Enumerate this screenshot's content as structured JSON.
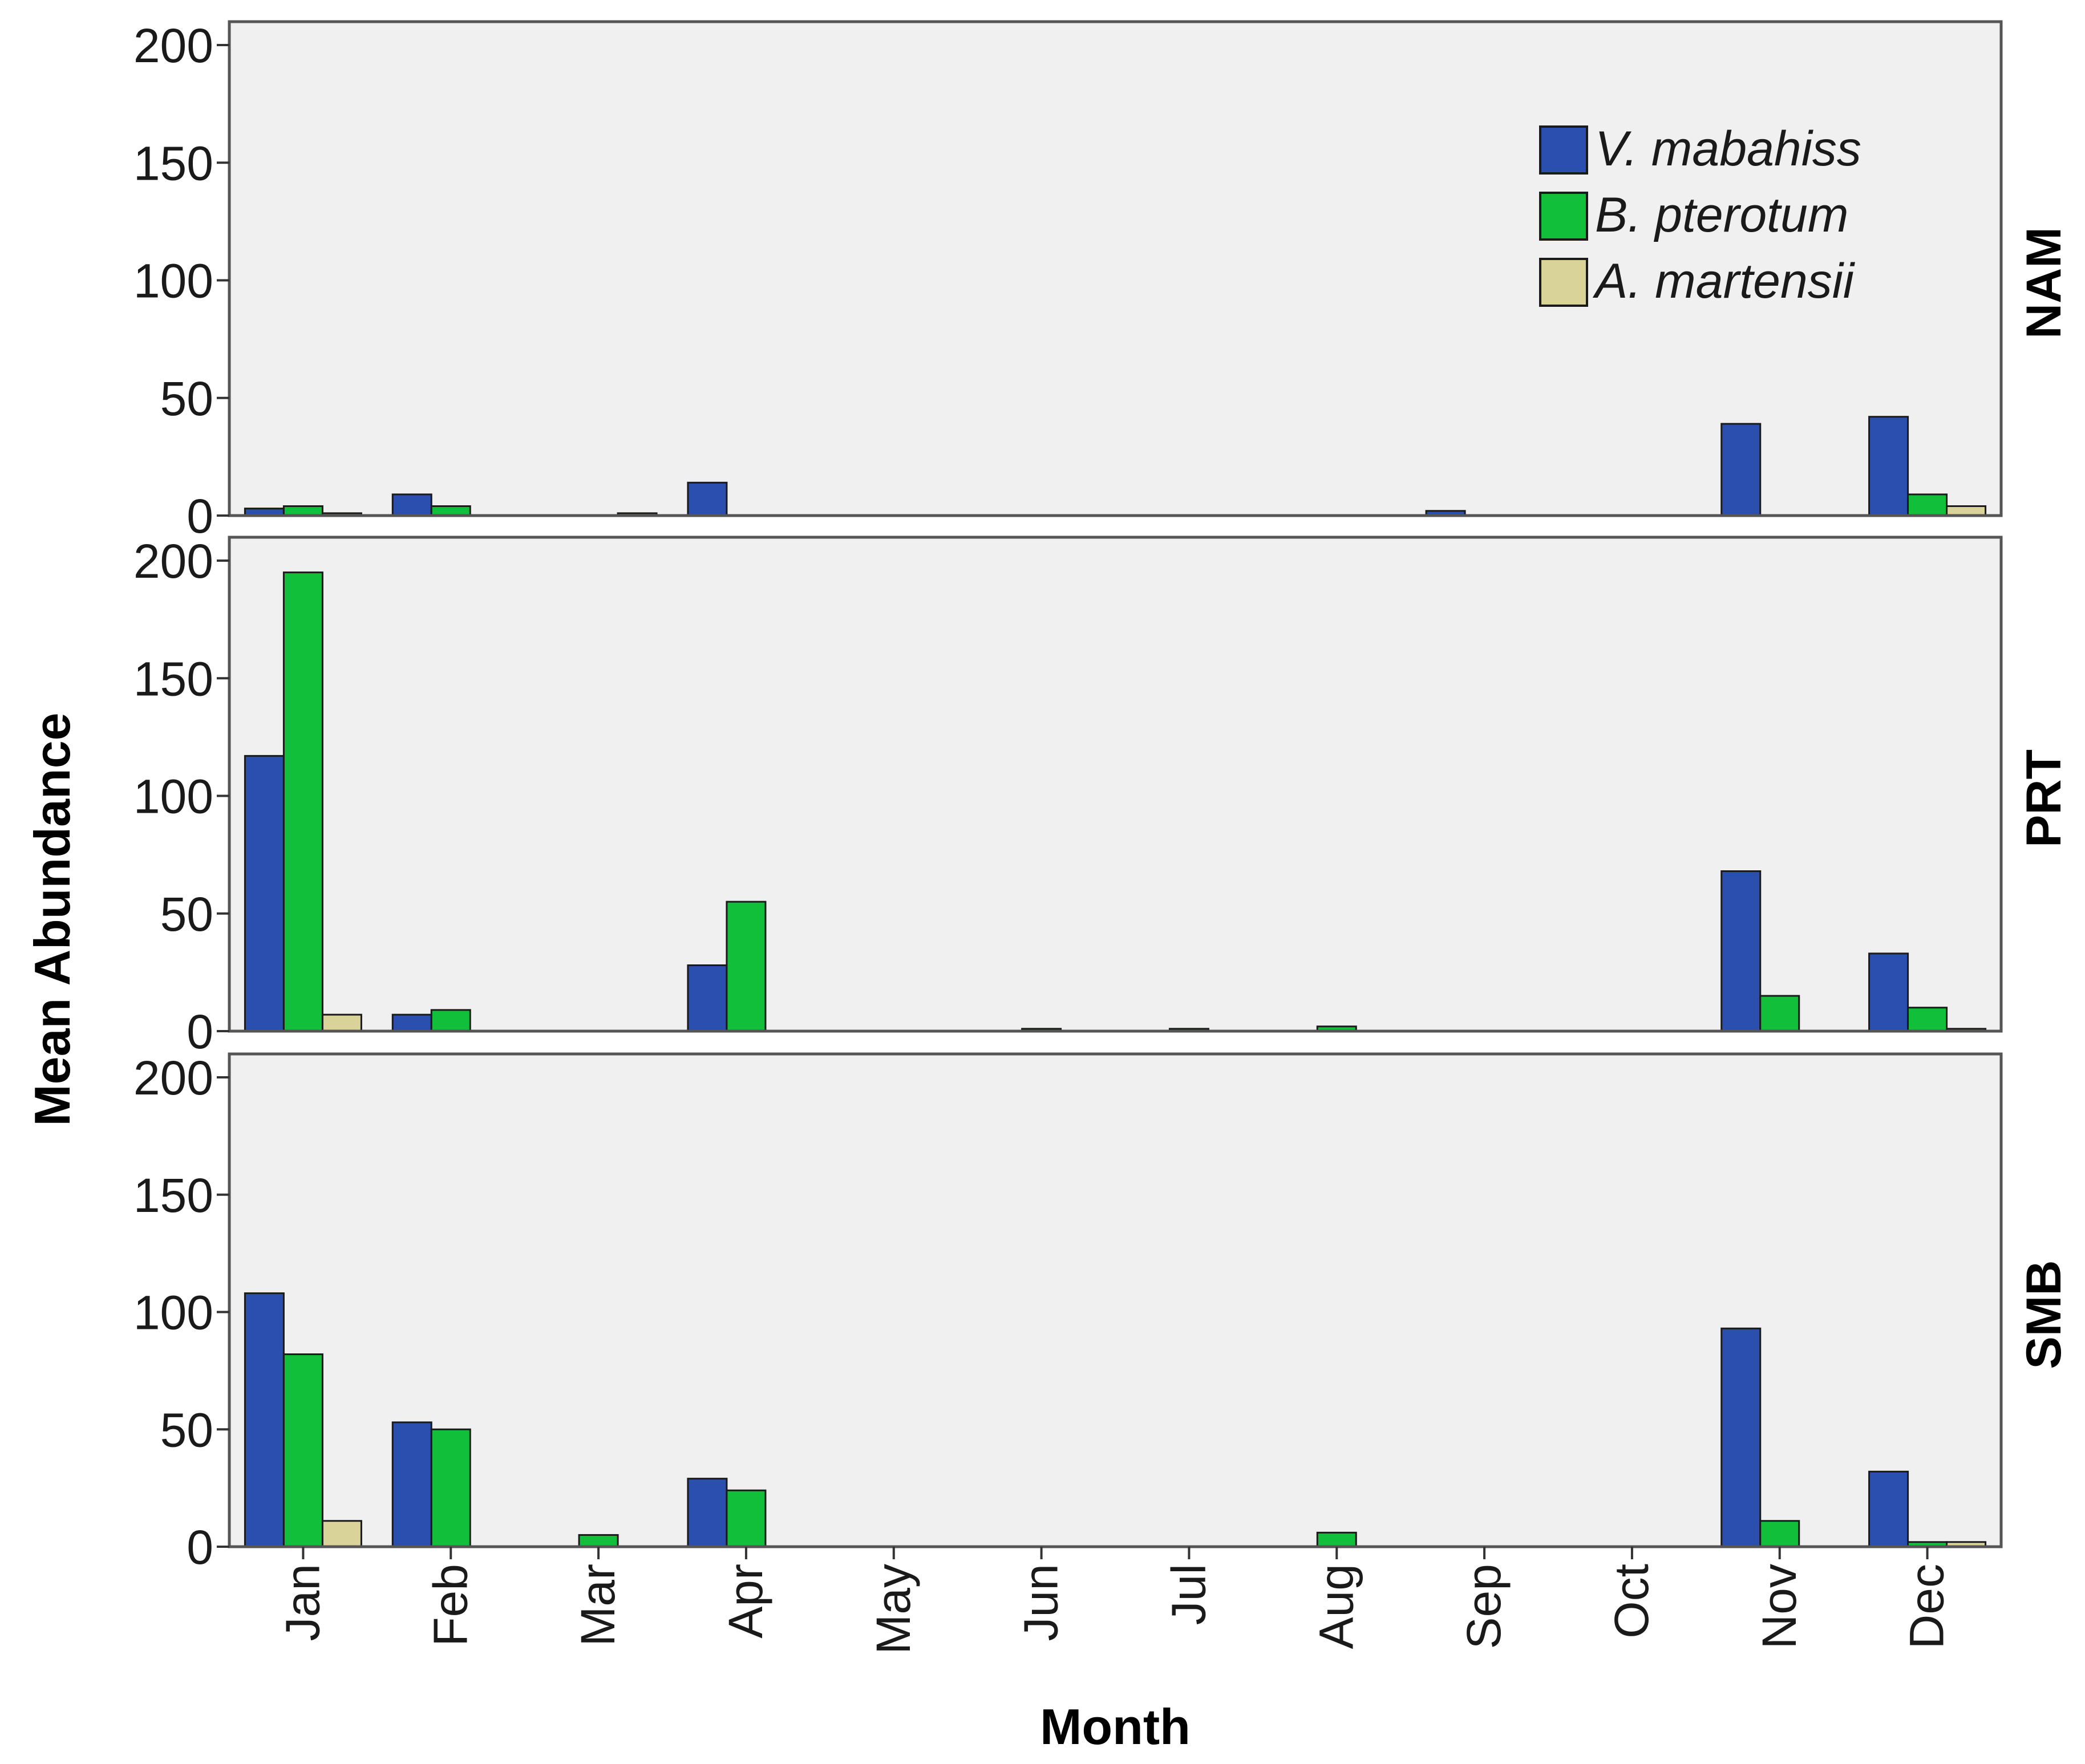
{
  "chart_data": {
    "type": "bar",
    "layout": "three stacked panels sharing x axis",
    "xlabel": "Month",
    "ylabel": "Mean Abundance",
    "ylim": [
      0,
      200
    ],
    "yticks": [
      0,
      50,
      100,
      150,
      200
    ],
    "categories": [
      "Jan",
      "Feb",
      "Mar",
      "Apr",
      "May",
      "Jun",
      "Jul",
      "Aug",
      "Sep",
      "Oct",
      "Nov",
      "Dec"
    ],
    "legend": {
      "position": "top-right of first panel",
      "entries": [
        {
          "name": "V. mabahiss",
          "color": "#2B4FAF"
        },
        {
          "name": "B. pterotum",
          "color": "#12BF3A"
        },
        {
          "name": "A. martensii",
          "color": "#D9D39A"
        }
      ]
    },
    "panels": [
      {
        "label": "NAM",
        "series": [
          {
            "name": "V. mabahiss",
            "values": [
              3,
              9,
              0,
              14,
              0,
              0,
              0,
              0,
              2,
              0,
              39,
              42
            ]
          },
          {
            "name": "B. pterotum",
            "values": [
              4,
              4,
              0,
              0,
              0,
              0,
              0,
              0,
              0,
              0,
              0,
              9
            ]
          },
          {
            "name": "A. martensii",
            "values": [
              1,
              0,
              1,
              0,
              0,
              0,
              0,
              0,
              0,
              0,
              0,
              4
            ]
          }
        ]
      },
      {
        "label": "PRT",
        "series": [
          {
            "name": "V. mabahiss",
            "values": [
              117,
              7,
              0,
              28,
              0,
              0,
              0,
              0,
              0,
              0,
              68,
              33
            ]
          },
          {
            "name": "B. pterotum",
            "values": [
              195,
              9,
              0,
              55,
              0,
              1,
              1,
              2,
              0,
              0,
              15,
              10
            ]
          },
          {
            "name": "A. martensii",
            "values": [
              7,
              0,
              0,
              0,
              0,
              0,
              0,
              0,
              0,
              0,
              0,
              1
            ]
          }
        ]
      },
      {
        "label": "SMB",
        "series": [
          {
            "name": "V. mabahiss",
            "values": [
              108,
              53,
              0,
              29,
              0,
              0,
              0,
              0,
              0,
              0,
              93,
              32
            ]
          },
          {
            "name": "B. pterotum",
            "values": [
              82,
              50,
              5,
              24,
              0,
              0,
              0,
              6,
              0,
              0,
              11,
              2
            ]
          },
          {
            "name": "A. martensii",
            "values": [
              11,
              0,
              0,
              0,
              0,
              0,
              0,
              0,
              0,
              0,
              0,
              2
            ]
          }
        ]
      }
    ]
  }
}
